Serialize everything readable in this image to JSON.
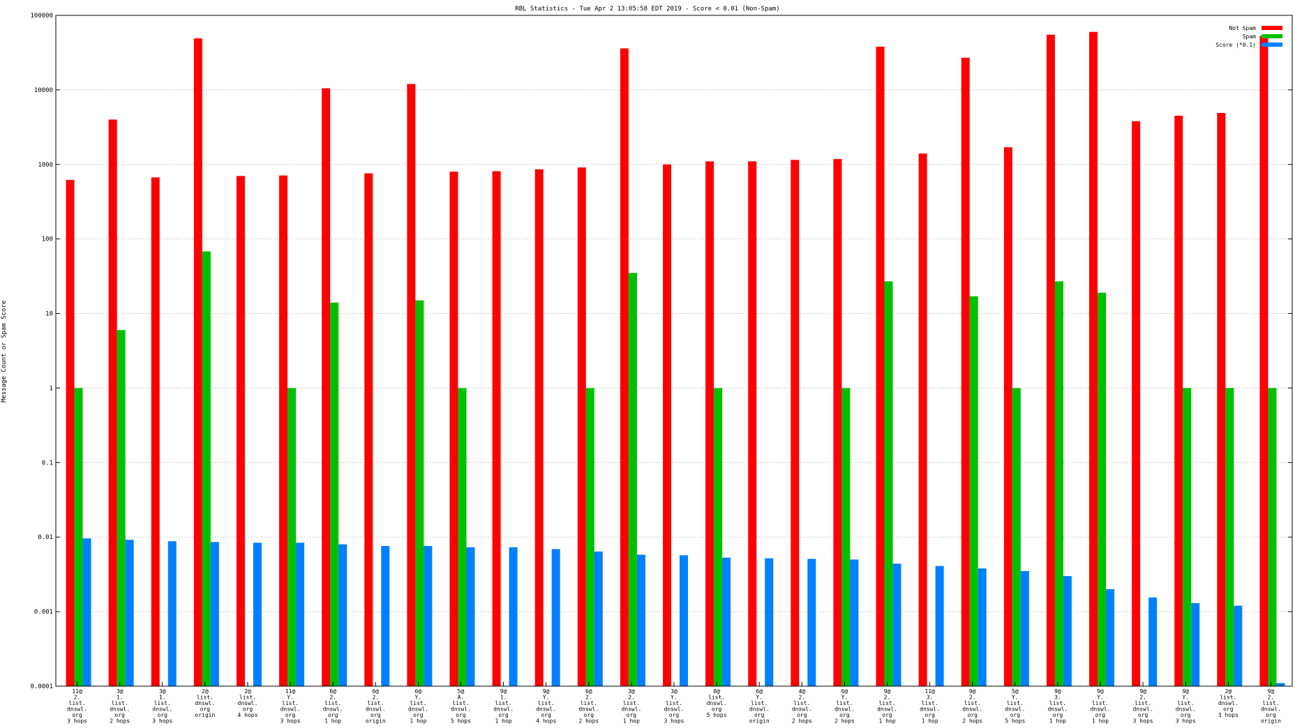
{
  "chart_data": {
    "type": "bar",
    "title": "RBL Statistics - Tue Apr  2 13:05:58 EDT 2019 - Score < 0.01 (Non-Spam)",
    "xlabel": "",
    "ylabel": "Message Count or Spam Score",
    "yscale": "log",
    "ylim": [
      0.0001,
      100000
    ],
    "yticks": [
      "0.0001",
      "0.001",
      "0.01",
      "0.1",
      "1",
      "10",
      "100",
      "1000",
      "10000",
      "100000"
    ],
    "grid": true,
    "legend_position": "top-right",
    "categories": [
      [
        "11@",
        "2.",
        "list.",
        "dnswl.",
        "org",
        "3 hops"
      ],
      [
        "3@",
        "1.",
        "list.",
        "dnswl.",
        "org",
        "2 hops"
      ],
      [
        "3@",
        "1.",
        "list.",
        "dnswl.",
        "org",
        "3 hops"
      ],
      [
        "2@",
        "list.",
        "dnswl.",
        "org",
        "origin"
      ],
      [
        "2@",
        "list.",
        "dnswl.",
        "org",
        "4 hops"
      ],
      [
        "11@",
        "Y.",
        "list.",
        "dnswl.",
        "org",
        "3 hops"
      ],
      [
        "6@",
        "2.",
        "list.",
        "dnswl.",
        "org",
        "1 hop"
      ],
      [
        "6@",
        "2.",
        "list.",
        "dnswl.",
        "org",
        "origin"
      ],
      [
        "6@",
        "Y.",
        "list.",
        "dnswl.",
        "org",
        "1 hop"
      ],
      [
        "5@",
        "A.",
        "list.",
        "dnswl.",
        "org",
        "5 hops"
      ],
      [
        "9@",
        "1.",
        "list.",
        "dnswl.",
        "org",
        "1 hop"
      ],
      [
        "9@",
        "Y.",
        "list.",
        "dnswl.",
        "org",
        "4 hops"
      ],
      [
        "6@",
        "2.",
        "list.",
        "dnswl.",
        "org",
        "2 hops"
      ],
      [
        "3@",
        "2.",
        "list.",
        "dnswl.",
        "org",
        "1 hop"
      ],
      [
        "3@",
        "Y.",
        "list.",
        "dnswl.",
        "org",
        "3 hops"
      ],
      [
        "8@",
        "list.",
        "dnswl.",
        "org",
        "5 hops"
      ],
      [
        "6@",
        "Y.",
        "list.",
        "dnswl.",
        "org",
        "origin"
      ],
      [
        "4@",
        "2.",
        "list.",
        "dnswl.",
        "org",
        "2 hops"
      ],
      [
        "6@",
        "Y.",
        "list.",
        "dnswl.",
        "org",
        "2 hops"
      ],
      [
        "9@",
        "2.",
        "list.",
        "dnswl.",
        "org",
        "1 hop"
      ],
      [
        "11@",
        "3.",
        "list.",
        "dnswl.",
        "org",
        "1 hop"
      ],
      [
        "9@",
        "2.",
        "list.",
        "dnswl.",
        "org",
        "2 hops"
      ],
      [
        "5@",
        "Y.",
        "list.",
        "dnswl.",
        "org",
        "5 hops"
      ],
      [
        "9@",
        "3.",
        "list.",
        "dnswl.",
        "org",
        "1 hop"
      ],
      [
        "9@",
        "Y.",
        "list.",
        "dnswl.",
        "org",
        "1 hop"
      ],
      [
        "9@",
        "2.",
        "list.",
        "dnswl.",
        "org",
        "3 hops"
      ],
      [
        "9@",
        "Y.",
        "list.",
        "dnswl.",
        "org",
        "3 hops"
      ],
      [
        "2@",
        "list.",
        "dnswl.",
        "org",
        "3 hops"
      ],
      [
        "9@",
        "2.",
        "list.",
        "dnswl.",
        "org",
        "origin"
      ]
    ],
    "series": [
      {
        "name": "Not Spam",
        "color": "#ff0000",
        "values": [
          620,
          4000,
          670,
          49000,
          700,
          710,
          10500,
          760,
          12000,
          800,
          810,
          860,
          910,
          36000,
          1000,
          1100,
          1100,
          1150,
          1180,
          38000,
          1400,
          27000,
          1700,
          55000,
          60000,
          3800,
          4500,
          4900,
          53000
        ]
      },
      {
        "name": "Spam",
        "color": "#00c000",
        "values": [
          1,
          6,
          null,
          68,
          null,
          1,
          14,
          null,
          15,
          1,
          null,
          null,
          1,
          35,
          null,
          1,
          null,
          null,
          1,
          27,
          null,
          17,
          1,
          27,
          19,
          null,
          1,
          1,
          1
        ]
      },
      {
        "name": "Score (*0.1)",
        "color": "#0080ff",
        "values": [
          0.0096,
          0.0092,
          0.0088,
          0.0086,
          0.0084,
          0.0084,
          0.008,
          0.0076,
          0.0076,
          0.0073,
          0.0073,
          0.0069,
          0.0064,
          0.0058,
          0.0057,
          0.0053,
          0.0052,
          0.0051,
          0.005,
          0.0044,
          0.0041,
          0.0038,
          0.0035,
          0.003,
          0.002,
          0.00155,
          0.0013,
          0.0012,
          0.00011
        ]
      }
    ]
  }
}
